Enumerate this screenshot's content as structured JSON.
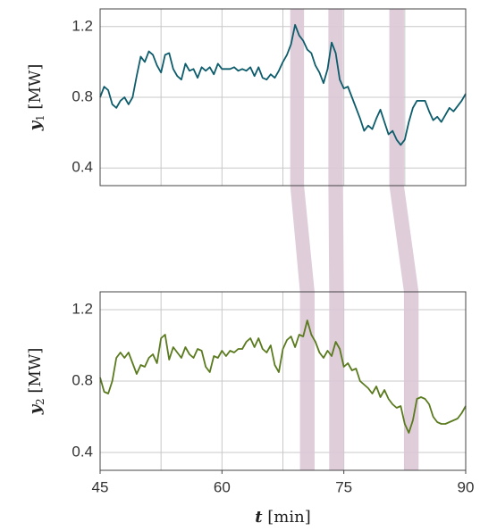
{
  "chart_data": [
    {
      "type": "line",
      "color": "#0d5c6b",
      "ylabel": {
        "symbol": "y",
        "subscript": "1",
        "unit": "[MW]"
      },
      "xlim": [
        45,
        90
      ],
      "ylim": [
        0.3,
        1.3
      ],
      "yticks": [
        0.4,
        0.8,
        1.2
      ],
      "xgrid": [
        52.5,
        60,
        67.5,
        75,
        82.5
      ],
      "grid": true,
      "x": [
        45,
        45.5,
        46,
        46.5,
        47,
        47.5,
        48,
        48.5,
        49,
        49.5,
        50,
        50.5,
        51,
        51.5,
        52,
        52.5,
        53,
        53.5,
        54,
        54.5,
        55,
        55.5,
        56,
        56.5,
        57,
        57.5,
        58,
        58.5,
        59,
        59.5,
        60,
        60.5,
        61,
        61.5,
        62,
        62.5,
        63,
        63.5,
        64,
        64.5,
        65,
        65.5,
        66,
        66.5,
        67,
        67.5,
        68,
        68.5,
        69,
        69.5,
        70,
        70.5,
        71,
        71.5,
        72,
        72.5,
        73,
        73.5,
        74,
        74.5,
        75,
        75.5,
        76,
        76.5,
        77,
        77.5,
        78,
        78.5,
        79,
        79.5,
        80,
        80.5,
        81,
        81.5,
        82,
        82.5,
        83,
        83.5,
        84,
        84.5,
        85,
        85.5,
        86,
        86.5,
        87,
        87.5,
        88,
        88.5,
        89,
        89.5,
        90
      ],
      "values": [
        0.8,
        0.86,
        0.84,
        0.76,
        0.74,
        0.78,
        0.8,
        0.76,
        0.8,
        0.92,
        1.03,
        1.0,
        1.06,
        1.04,
        0.98,
        0.94,
        1.04,
        1.05,
        0.96,
        0.92,
        0.9,
        0.99,
        0.95,
        0.96,
        0.91,
        0.97,
        0.95,
        0.97,
        0.93,
        0.99,
        0.96,
        0.96,
        0.96,
        0.97,
        0.95,
        0.96,
        0.95,
        0.97,
        0.92,
        0.97,
        0.91,
        0.9,
        0.93,
        0.91,
        0.95,
        1.0,
        1.04,
        1.1,
        1.21,
        1.15,
        1.12,
        1.07,
        1.05,
        0.98,
        0.94,
        0.88,
        0.96,
        1.11,
        1.05,
        0.9,
        0.85,
        0.86,
        0.8,
        0.74,
        0.68,
        0.61,
        0.64,
        0.62,
        0.68,
        0.73,
        0.66,
        0.59,
        0.61,
        0.56,
        0.53,
        0.56,
        0.66,
        0.74,
        0.78,
        0.78,
        0.78,
        0.72,
        0.67,
        0.69,
        0.66,
        0.7,
        0.74,
        0.72,
        0.75,
        0.78,
        0.82
      ]
    },
    {
      "type": "line",
      "color": "#5a7a1e",
      "ylabel": {
        "symbol": "y",
        "subscript": "2",
        "unit": "[MW]"
      },
      "xlabel": {
        "symbol": "t",
        "unit": "[min]"
      },
      "xlim": [
        45,
        90
      ],
      "ylim": [
        0.3,
        1.3
      ],
      "yticks": [
        0.4,
        0.8,
        1.2
      ],
      "xticks": [
        45,
        60,
        75,
        90
      ],
      "xgrid": [
        52.5,
        60,
        67.5,
        75,
        82.5
      ],
      "grid": true,
      "x": [
        45,
        45.5,
        46,
        46.5,
        47,
        47.5,
        48,
        48.5,
        49,
        49.5,
        50,
        50.5,
        51,
        51.5,
        52,
        52.5,
        53,
        53.5,
        54,
        54.5,
        55,
        55.5,
        56,
        56.5,
        57,
        57.5,
        58,
        58.5,
        59,
        59.5,
        60,
        60.5,
        61,
        61.5,
        62,
        62.5,
        63,
        63.5,
        64,
        64.5,
        65,
        65.5,
        66,
        66.5,
        67,
        67.5,
        68,
        68.5,
        69,
        69.5,
        70,
        70.5,
        71,
        71.5,
        72,
        72.5,
        73,
        73.5,
        74,
        74.5,
        75,
        75.5,
        76,
        76.5,
        77,
        77.5,
        78,
        78.5,
        79,
        79.5,
        80,
        80.5,
        81,
        81.5,
        82,
        82.5,
        83,
        83.5,
        84,
        84.5,
        85,
        85.5,
        86,
        86.5,
        87,
        87.5,
        88,
        88.5,
        89,
        89.5,
        90
      ],
      "values": [
        0.82,
        0.74,
        0.73,
        0.8,
        0.93,
        0.96,
        0.93,
        0.96,
        0.9,
        0.84,
        0.89,
        0.88,
        0.93,
        0.95,
        0.9,
        1.04,
        1.06,
        0.92,
        0.99,
        0.96,
        0.93,
        0.99,
        0.95,
        0.93,
        0.98,
        0.97,
        0.88,
        0.85,
        0.94,
        0.93,
        0.97,
        0.94,
        0.97,
        0.96,
        0.98,
        0.98,
        1.02,
        1.04,
        0.99,
        1.04,
        0.98,
        0.96,
        1.0,
        0.89,
        0.85,
        0.98,
        1.03,
        1.05,
        0.99,
        1.06,
        1.05,
        1.14,
        1.06,
        1.02,
        0.96,
        0.93,
        0.97,
        0.94,
        1.02,
        0.98,
        0.88,
        0.9,
        0.86,
        0.87,
        0.8,
        0.78,
        0.76,
        0.73,
        0.77,
        0.71,
        0.75,
        0.7,
        0.67,
        0.65,
        0.66,
        0.56,
        0.51,
        0.58,
        0.7,
        0.71,
        0.7,
        0.67,
        0.6,
        0.57,
        0.56,
        0.56,
        0.57,
        0.58,
        0.59,
        0.62,
        0.66
      ]
    }
  ],
  "highlights": {
    "color": "#dcc8d6",
    "ranges": [
      {
        "top": [
          68.4,
          70.1
        ],
        "bottom": [
          69.6,
          71.4
        ]
      },
      {
        "top": [
          73.1,
          74.9
        ],
        "bottom": [
          73.2,
          75.0
        ]
      },
      {
        "top": [
          80.6,
          82.4
        ],
        "bottom": [
          82.4,
          84.2
        ]
      }
    ]
  }
}
